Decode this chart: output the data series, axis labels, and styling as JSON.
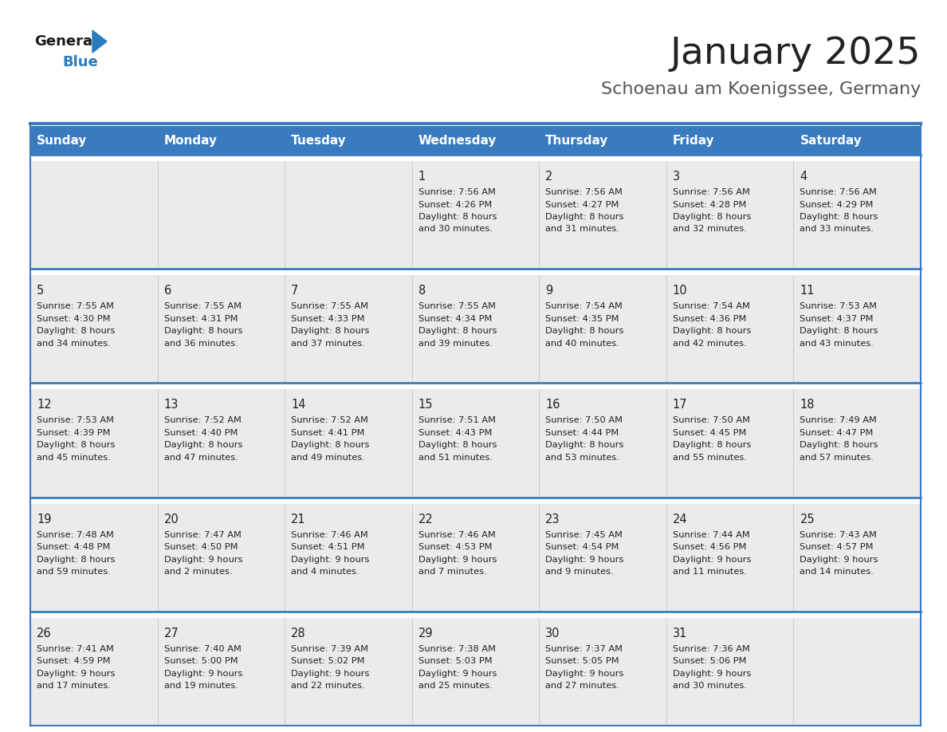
{
  "title": "January 2025",
  "subtitle": "Schoenau am Koenigssee, Germany",
  "days_of_week": [
    "Sunday",
    "Monday",
    "Tuesday",
    "Wednesday",
    "Thursday",
    "Friday",
    "Saturday"
  ],
  "header_bg": "#3a7bbf",
  "header_text_color": "#ffffff",
  "cell_bg": "#ebebeb",
  "row_gap_color": "#ffffff",
  "separator_color": "#3a7bbf",
  "text_color": "#222222",
  "title_color": "#222222",
  "subtitle_color": "#555555",
  "logo_general_color": "#1a1a1a",
  "logo_blue_color": "#2a7bbf",
  "calendar": [
    [
      null,
      null,
      null,
      {
        "day": 1,
        "sunrise": "7:56 AM",
        "sunset": "4:26 PM",
        "daylight": "8 hours and 30 minutes."
      },
      {
        "day": 2,
        "sunrise": "7:56 AM",
        "sunset": "4:27 PM",
        "daylight": "8 hours and 31 minutes."
      },
      {
        "day": 3,
        "sunrise": "7:56 AM",
        "sunset": "4:28 PM",
        "daylight": "8 hours and 32 minutes."
      },
      {
        "day": 4,
        "sunrise": "7:56 AM",
        "sunset": "4:29 PM",
        "daylight": "8 hours and 33 minutes."
      }
    ],
    [
      {
        "day": 5,
        "sunrise": "7:55 AM",
        "sunset": "4:30 PM",
        "daylight": "8 hours and 34 minutes."
      },
      {
        "day": 6,
        "sunrise": "7:55 AM",
        "sunset": "4:31 PM",
        "daylight": "8 hours and 36 minutes."
      },
      {
        "day": 7,
        "sunrise": "7:55 AM",
        "sunset": "4:33 PM",
        "daylight": "8 hours and 37 minutes."
      },
      {
        "day": 8,
        "sunrise": "7:55 AM",
        "sunset": "4:34 PM",
        "daylight": "8 hours and 39 minutes."
      },
      {
        "day": 9,
        "sunrise": "7:54 AM",
        "sunset": "4:35 PM",
        "daylight": "8 hours and 40 minutes."
      },
      {
        "day": 10,
        "sunrise": "7:54 AM",
        "sunset": "4:36 PM",
        "daylight": "8 hours and 42 minutes."
      },
      {
        "day": 11,
        "sunrise": "7:53 AM",
        "sunset": "4:37 PM",
        "daylight": "8 hours and 43 minutes."
      }
    ],
    [
      {
        "day": 12,
        "sunrise": "7:53 AM",
        "sunset": "4:39 PM",
        "daylight": "8 hours and 45 minutes."
      },
      {
        "day": 13,
        "sunrise": "7:52 AM",
        "sunset": "4:40 PM",
        "daylight": "8 hours and 47 minutes."
      },
      {
        "day": 14,
        "sunrise": "7:52 AM",
        "sunset": "4:41 PM",
        "daylight": "8 hours and 49 minutes."
      },
      {
        "day": 15,
        "sunrise": "7:51 AM",
        "sunset": "4:43 PM",
        "daylight": "8 hours and 51 minutes."
      },
      {
        "day": 16,
        "sunrise": "7:50 AM",
        "sunset": "4:44 PM",
        "daylight": "8 hours and 53 minutes."
      },
      {
        "day": 17,
        "sunrise": "7:50 AM",
        "sunset": "4:45 PM",
        "daylight": "8 hours and 55 minutes."
      },
      {
        "day": 18,
        "sunrise": "7:49 AM",
        "sunset": "4:47 PM",
        "daylight": "8 hours and 57 minutes."
      }
    ],
    [
      {
        "day": 19,
        "sunrise": "7:48 AM",
        "sunset": "4:48 PM",
        "daylight": "8 hours and 59 minutes."
      },
      {
        "day": 20,
        "sunrise": "7:47 AM",
        "sunset": "4:50 PM",
        "daylight": "9 hours and 2 minutes."
      },
      {
        "day": 21,
        "sunrise": "7:46 AM",
        "sunset": "4:51 PM",
        "daylight": "9 hours and 4 minutes."
      },
      {
        "day": 22,
        "sunrise": "7:46 AM",
        "sunset": "4:53 PM",
        "daylight": "9 hours and 7 minutes."
      },
      {
        "day": 23,
        "sunrise": "7:45 AM",
        "sunset": "4:54 PM",
        "daylight": "9 hours and 9 minutes."
      },
      {
        "day": 24,
        "sunrise": "7:44 AM",
        "sunset": "4:56 PM",
        "daylight": "9 hours and 11 minutes."
      },
      {
        "day": 25,
        "sunrise": "7:43 AM",
        "sunset": "4:57 PM",
        "daylight": "9 hours and 14 minutes."
      }
    ],
    [
      {
        "day": 26,
        "sunrise": "7:41 AM",
        "sunset": "4:59 PM",
        "daylight": "9 hours and 17 minutes."
      },
      {
        "day": 27,
        "sunrise": "7:40 AM",
        "sunset": "5:00 PM",
        "daylight": "9 hours and 19 minutes."
      },
      {
        "day": 28,
        "sunrise": "7:39 AM",
        "sunset": "5:02 PM",
        "daylight": "9 hours and 22 minutes."
      },
      {
        "day": 29,
        "sunrise": "7:38 AM",
        "sunset": "5:03 PM",
        "daylight": "9 hours and 25 minutes."
      },
      {
        "day": 30,
        "sunrise": "7:37 AM",
        "sunset": "5:05 PM",
        "daylight": "9 hours and 27 minutes."
      },
      {
        "day": 31,
        "sunrise": "7:36 AM",
        "sunset": "5:06 PM",
        "daylight": "9 hours and 30 minutes."
      },
      null
    ]
  ]
}
